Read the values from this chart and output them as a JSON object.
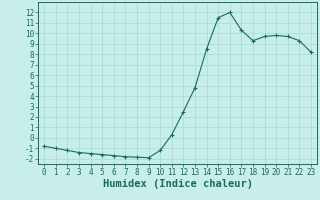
{
  "xlabel": "Humidex (Indice chaleur)",
  "x_values": [
    0,
    1,
    2,
    3,
    4,
    5,
    6,
    7,
    8,
    9,
    10,
    11,
    12,
    13,
    14,
    15,
    16,
    17,
    18,
    19,
    20,
    21,
    22,
    23
  ],
  "y_values": [
    -0.8,
    -1.0,
    -1.2,
    -1.4,
    -1.5,
    -1.6,
    -1.7,
    -1.8,
    -1.85,
    -1.9,
    -1.2,
    0.3,
    2.5,
    4.8,
    8.5,
    11.5,
    12.0,
    10.3,
    9.3,
    9.7,
    9.8,
    9.7,
    9.3,
    8.2
  ],
  "ylim": [
    -2.5,
    13.0
  ],
  "xlim": [
    -0.5,
    23.5
  ],
  "yticks": [
    -2,
    -1,
    0,
    1,
    2,
    3,
    4,
    5,
    6,
    7,
    8,
    9,
    10,
    11,
    12
  ],
  "xticks": [
    0,
    1,
    2,
    3,
    4,
    5,
    6,
    7,
    8,
    9,
    10,
    11,
    12,
    13,
    14,
    15,
    16,
    17,
    18,
    19,
    20,
    21,
    22,
    23
  ],
  "line_color": "#1a6b5a",
  "marker": "+",
  "bg_color": "#c8eeea",
  "grid_color": "#a8dbd5",
  "axis_color": "#1a6b5a",
  "tick_label_fontsize": 5.5,
  "xlabel_fontsize": 7.5
}
